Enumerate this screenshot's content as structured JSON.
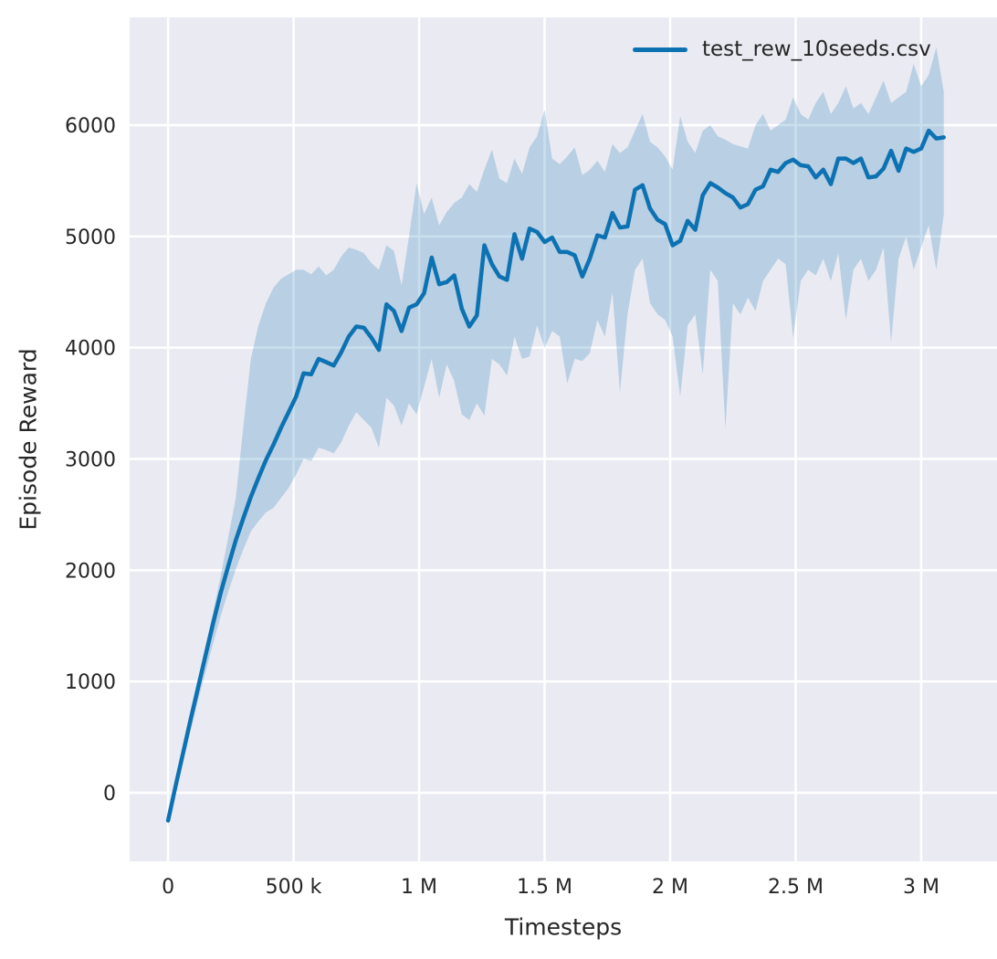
{
  "chart_data": {
    "type": "line",
    "title": "",
    "xlabel": "Timesteps",
    "ylabel": "Episode Reward",
    "legend_position": "upper right",
    "grid": true,
    "style": {
      "plot_background": "#eaeaf2",
      "grid_color": "#ffffff",
      "text_color": "#262626",
      "line_color": "#0d72b2",
      "band_fill": "rgba(13,114,178,0.22)",
      "line_width": 4.5,
      "grid_width": 2.5
    },
    "xlim": [
      -153000,
      3302000
    ],
    "ylim": [
      -616,
      6969
    ],
    "x_ticks": [
      {
        "value": 0,
        "label": "0"
      },
      {
        "value": 500000,
        "label": "500 k"
      },
      {
        "value": 1000000,
        "label": "1 M"
      },
      {
        "value": 1500000,
        "label": "1.5 M"
      },
      {
        "value": 2000000,
        "label": "2 M"
      },
      {
        "value": 2500000,
        "label": "2.5 M"
      },
      {
        "value": 3000000,
        "label": "3 M"
      }
    ],
    "y_ticks": [
      {
        "value": 0,
        "label": "0"
      },
      {
        "value": 1000,
        "label": "1000"
      },
      {
        "value": 2000,
        "label": "2000"
      },
      {
        "value": 3000,
        "label": "3000"
      },
      {
        "value": 4000,
        "label": "4000"
      },
      {
        "value": 5000,
        "label": "5000"
      },
      {
        "value": 6000,
        "label": "6000"
      }
    ],
    "series": [
      {
        "name": "test_rew_10seeds.csv",
        "x": [
          0,
          30000,
          60000,
          90000,
          120000,
          150000,
          180000,
          210000,
          240000,
          270000,
          300000,
          330000,
          360000,
          390000,
          420000,
          450000,
          480000,
          510000,
          540000,
          570000,
          600000,
          630000,
          660000,
          690000,
          720000,
          750000,
          780000,
          810000,
          840000,
          870000,
          900000,
          930000,
          960000,
          990000,
          1020000,
          1050000,
          1080000,
          1110000,
          1140000,
          1170000,
          1200000,
          1230000,
          1260000,
          1290000,
          1320000,
          1350000,
          1380000,
          1410000,
          1440000,
          1470000,
          1500000,
          1530000,
          1560000,
          1590000,
          1620000,
          1650000,
          1680000,
          1710000,
          1740000,
          1770000,
          1800000,
          1830000,
          1860000,
          1890000,
          1920000,
          1950000,
          1980000,
          2010000,
          2040000,
          2070000,
          2100000,
          2130000,
          2160000,
          2190000,
          2220000,
          2250000,
          2280000,
          2310000,
          2340000,
          2370000,
          2400000,
          2430000,
          2460000,
          2490000,
          2520000,
          2550000,
          2580000,
          2610000,
          2640000,
          2670000,
          2700000,
          2730000,
          2760000,
          2790000,
          2820000,
          2850000,
          2880000,
          2910000,
          2940000,
          2970000,
          3000000,
          3030000,
          3060000,
          3090000
        ],
        "mean": [
          -250,
          60,
          360,
          660,
          950,
          1240,
          1530,
          1800,
          2040,
          2270,
          2470,
          2660,
          2830,
          2990,
          3130,
          3280,
          3420,
          3560,
          3770,
          3760,
          3900,
          3870,
          3840,
          3960,
          4100,
          4190,
          4180,
          4090,
          3980,
          4390,
          4330,
          4150,
          4360,
          4390,
          4490,
          4810,
          4570,
          4590,
          4650,
          4350,
          4190,
          4290,
          4920,
          4750,
          4640,
          4610,
          5020,
          4800,
          5070,
          5040,
          4950,
          4990,
          4860,
          4860,
          4830,
          4640,
          4800,
          5010,
          4990,
          5210,
          5080,
          5090,
          5420,
          5460,
          5250,
          5150,
          5110,
          4920,
          4960,
          5140,
          5060,
          5370,
          5480,
          5440,
          5390,
          5350,
          5260,
          5290,
          5420,
          5450,
          5600,
          5580,
          5660,
          5690,
          5640,
          5630,
          5530,
          5600,
          5470,
          5700,
          5700,
          5660,
          5700,
          5530,
          5540,
          5610,
          5770,
          5590,
          5790,
          5760,
          5790,
          5950,
          5880,
          5890
        ],
        "upper": [
          -200,
          100,
          420,
          730,
          1030,
          1330,
          1630,
          1950,
          2300,
          2650,
          3300,
          3900,
          4200,
          4400,
          4540,
          4620,
          4660,
          4700,
          4700,
          4660,
          4730,
          4650,
          4700,
          4820,
          4900,
          4880,
          4850,
          4760,
          4700,
          4920,
          4870,
          4560,
          5000,
          5480,
          5200,
          5350,
          5100,
          5220,
          5300,
          5350,
          5470,
          5400,
          5600,
          5780,
          5520,
          5480,
          5700,
          5560,
          5800,
          5900,
          6140,
          5700,
          5650,
          5720,
          5800,
          5550,
          5600,
          5680,
          5580,
          5830,
          5750,
          5800,
          5950,
          6100,
          5850,
          5800,
          5720,
          5600,
          6080,
          5850,
          5750,
          5950,
          6000,
          5900,
          5870,
          5830,
          5810,
          5790,
          6000,
          6100,
          5950,
          6000,
          6050,
          6250,
          6100,
          6050,
          6200,
          6300,
          6100,
          6200,
          6350,
          6150,
          6200,
          6100,
          6250,
          6400,
          6200,
          6250,
          6300,
          6550,
          6350,
          6450,
          6700,
          6300
        ],
        "lower": [
          -300,
          -20,
          280,
          560,
          830,
          1090,
          1350,
          1590,
          1810,
          2010,
          2190,
          2350,
          2440,
          2520,
          2560,
          2650,
          2740,
          2860,
          3000,
          2980,
          3100,
          3080,
          3050,
          3150,
          3300,
          3420,
          3350,
          3280,
          3100,
          3550,
          3480,
          3300,
          3500,
          3400,
          3650,
          3900,
          3550,
          3850,
          3700,
          3400,
          3350,
          3500,
          3390,
          3900,
          3850,
          3750,
          4100,
          3900,
          3920,
          4200,
          4000,
          4150,
          4100,
          3680,
          3900,
          3880,
          3950,
          4250,
          4100,
          4500,
          3600,
          4300,
          4700,
          4800,
          4400,
          4300,
          4250,
          4100,
          3560,
          4200,
          4300,
          3760,
          4700,
          4600,
          3270,
          4400,
          4300,
          4450,
          4330,
          4600,
          4700,
          4800,
          4750,
          4090,
          4600,
          4700,
          4650,
          4800,
          4600,
          4850,
          4250,
          4700,
          4800,
          4600,
          4700,
          4900,
          4050,
          4800,
          5000,
          4700,
          4900,
          5100,
          4700,
          5200
        ]
      }
    ]
  }
}
